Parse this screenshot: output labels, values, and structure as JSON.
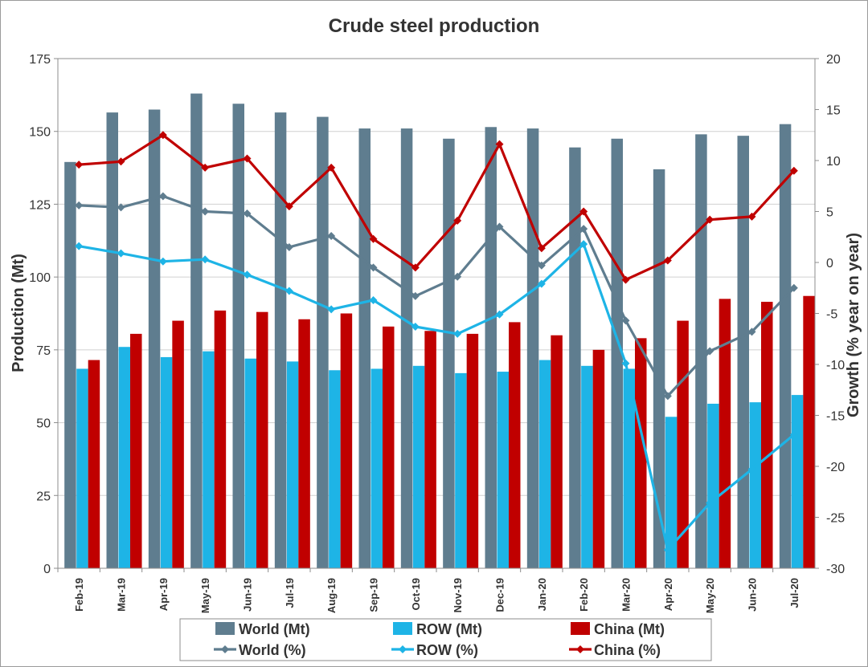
{
  "chart_data": {
    "type": "bar+line",
    "title": "Crude steel production",
    "ylabel": "Production (Mt)",
    "y2label": "Growth (% year on year)",
    "ylim": [
      0,
      175
    ],
    "y2lim": [
      -30,
      20
    ],
    "yticks": [
      0,
      25,
      50,
      75,
      100,
      125,
      150,
      175
    ],
    "y2ticks": [
      -30,
      -25,
      -20,
      -15,
      -10,
      -5,
      0,
      5,
      10,
      15,
      20
    ],
    "categories": [
      "Feb-19",
      "Mar-19",
      "Apr-19",
      "May-19",
      "Jun-19",
      "Jul-19",
      "Aug-19",
      "Sep-19",
      "Oct-19",
      "Nov-19",
      "Dec-19",
      "Jan-20",
      "Feb-20",
      "Mar-20",
      "Apr-20",
      "May-20",
      "Jun-20",
      "Jul-20"
    ],
    "bars": [
      {
        "name": "World (Mt)",
        "color": "#5f7d8f",
        "values": [
          139.5,
          156.5,
          157.5,
          163,
          159.5,
          156.5,
          155,
          151,
          151,
          147.5,
          151.5,
          151,
          144.5,
          147.5,
          137,
          149,
          148.5,
          152.5
        ]
      },
      {
        "name": "ROW (Mt)",
        "color": "#1eb4e6",
        "values": [
          68.5,
          76,
          72.5,
          74.5,
          72,
          71,
          68,
          68.5,
          69.5,
          67,
          67.5,
          71.5,
          69.5,
          68.5,
          52,
          56.5,
          57,
          59.5
        ]
      },
      {
        "name": "China (Mt)",
        "color": "#c00000",
        "values": [
          71.5,
          80.5,
          85,
          88.5,
          88,
          85.5,
          87.5,
          83,
          81.5,
          80.5,
          84.5,
          80,
          75,
          79,
          85,
          92.5,
          91.5,
          93.5
        ]
      }
    ],
    "lines": [
      {
        "name": "World (%)",
        "color": "#5f7d8f",
        "values": [
          5.6,
          5.4,
          6.5,
          5.0,
          4.8,
          1.5,
          2.6,
          -0.5,
          -3.3,
          -1.4,
          3.5,
          -0.3,
          3.3,
          -5.7,
          -13.1,
          -8.7,
          -6.8,
          -2.5
        ]
      },
      {
        "name": "ROW (%)",
        "color": "#1eb4e6",
        "values": [
          1.6,
          0.9,
          0.1,
          0.3,
          -1.2,
          -2.8,
          -4.6,
          -3.7,
          -6.3,
          -7.0,
          -5.1,
          -2.1,
          1.8,
          -9.9,
          -28.2,
          -23.6,
          -20.3,
          -16.9
        ]
      },
      {
        "name": "China (%)",
        "color": "#c00000",
        "values": [
          9.6,
          9.9,
          12.5,
          9.3,
          10.2,
          5.5,
          9.3,
          2.3,
          -0.5,
          4.1,
          11.6,
          1.4,
          5.0,
          -1.7,
          0.2,
          4.2,
          4.5,
          9.0
        ]
      }
    ],
    "legend": {
      "position": "bottom",
      "items": [
        "World (Mt)",
        "ROW (Mt)",
        "China (Mt)",
        "World (%)",
        "ROW (%)",
        "China (%)"
      ]
    }
  }
}
